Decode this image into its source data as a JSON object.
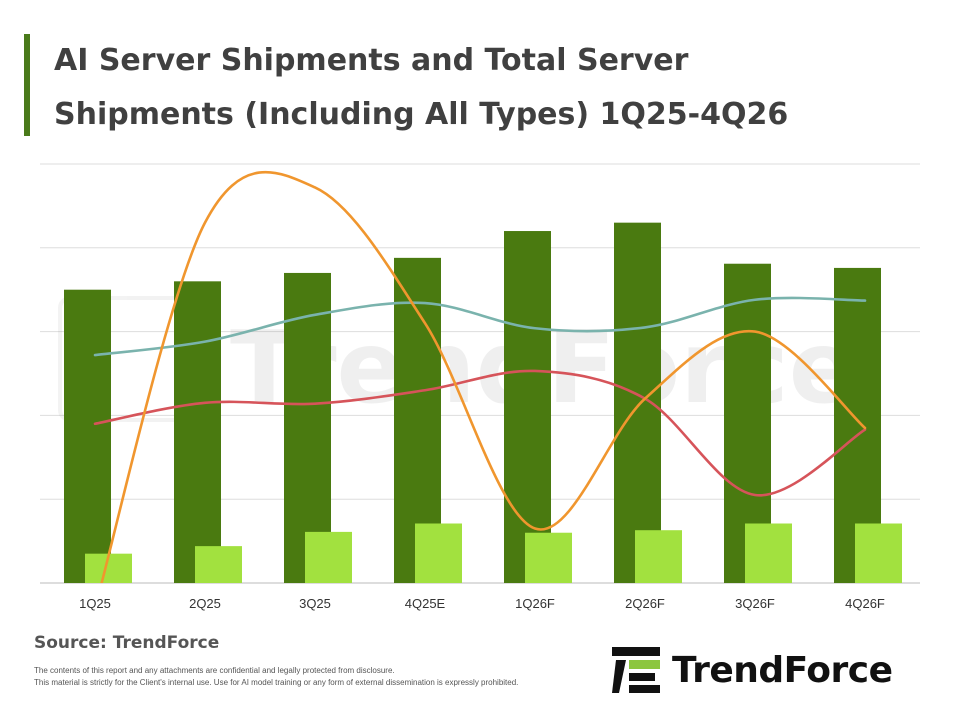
{
  "title_lines": [
    "AI Server Shipments and Total Server",
    "Shipments (Including All Types) 1Q25-4Q26"
  ],
  "source": "Source: TrendForce",
  "disclaimer": [
    "The contents of this report and any attachments are confidential and legally protected from disclosure.",
    "This material is strictly for the Client's internal use. Use for AI model training or any form of external dissemination is expressly prohibited."
  ],
  "logo_text": "TrendForce",
  "watermark_text": "TrendForce",
  "colors": {
    "total_bar": "#4a7a10",
    "ai_bar": "#a2e13f",
    "teal_line": "#7ab3ad",
    "orange_line": "#f0962e",
    "red_line": "#d6545a",
    "grid": "#dddddd",
    "accent": "#4a7a1a"
  },
  "chart_data": {
    "type": "bar",
    "categories": [
      "1Q25",
      "2Q25",
      "3Q25",
      "4Q25E",
      "1Q26F",
      "2Q26F",
      "3Q26F",
      "4Q26F"
    ],
    "ylim": [
      0,
      5
    ],
    "grid": true,
    "series": [
      {
        "kind": "bar",
        "color": "#4a7a10",
        "values": [
          3.5,
          3.6,
          3.7,
          3.88,
          4.2,
          4.3,
          3.81,
          3.76
        ]
      },
      {
        "kind": "bar",
        "color": "#a2e13f",
        "values": [
          0.35,
          0.44,
          0.61,
          0.71,
          0.6,
          0.63,
          0.71,
          0.71
        ]
      },
      {
        "kind": "line",
        "color": "#7ab3ad",
        "values": [
          2.72,
          2.88,
          3.2,
          3.34,
          3.04,
          3.05,
          3.38,
          3.37
        ]
      },
      {
        "kind": "line",
        "color": "#d6545a",
        "values": [
          1.9,
          2.15,
          2.14,
          2.3,
          2.53,
          2.2,
          1.05,
          1.83
        ]
      },
      {
        "kind": "line",
        "color": "#f0962e",
        "values": [
          -0.3,
          4.3,
          4.72,
          3.1,
          0.65,
          2.2,
          3.0,
          1.85
        ]
      }
    ]
  }
}
